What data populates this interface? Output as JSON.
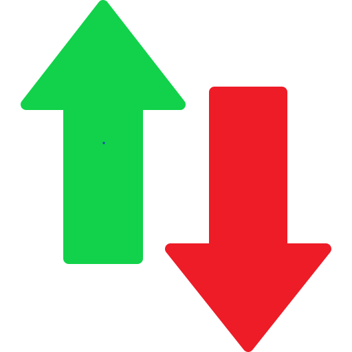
{
  "icon": {
    "name": "sort-up-down-arrows-icon",
    "up_arrow": {
      "name": "arrow-up-icon",
      "color": "#11d24a"
    },
    "down_arrow": {
      "name": "arrow-down-icon",
      "color": "#ed1c27"
    },
    "dot_color": "#1f3fbf"
  }
}
